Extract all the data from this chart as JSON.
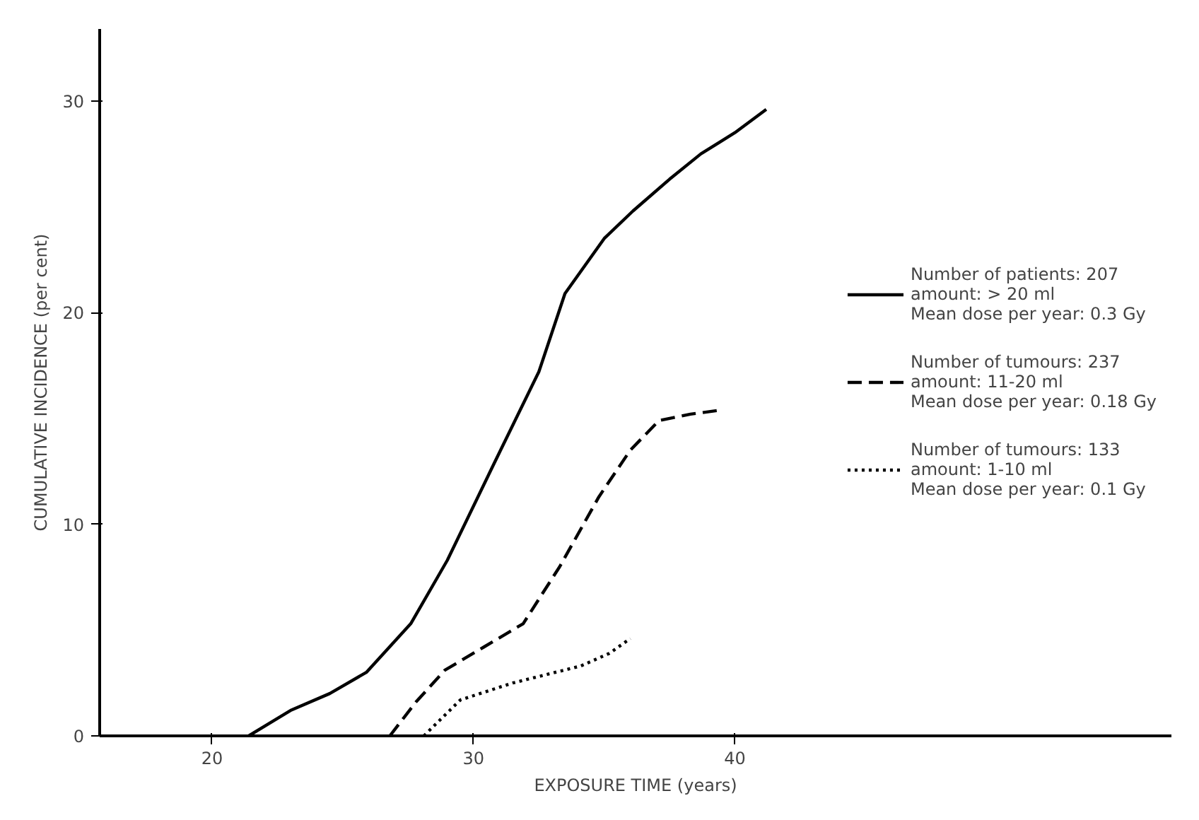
{
  "chart_data": {
    "type": "line",
    "xlabel": "EXPOSURE TIME (years)",
    "ylabel": "CUMULATIVE INCIDENCE (per cent)",
    "xlim": [
      15.7,
      56.7
    ],
    "ylim": [
      0,
      33.4
    ],
    "xticks": [
      20,
      30,
      40
    ],
    "yticks": [
      0,
      10,
      20,
      30
    ],
    "grid": false,
    "legend": "right",
    "marker": "none",
    "series": [
      {
        "name": "Number of patients: 207\namount: > 20 ml\nMean dose per year: 0.3 Gy",
        "color": "#000000",
        "line_style": "solid",
        "x": [
          21.4,
          23,
          24.5,
          25.9,
          27.6,
          29.0,
          30.8,
          32.5,
          33.5,
          35.0,
          36.1,
          37.5,
          38.7,
          40.0,
          41.2
        ],
        "values": [
          0,
          1.2,
          2.0,
          3.0,
          5.3,
          8.3,
          12.9,
          17.2,
          20.9,
          23.5,
          24.8,
          26.3,
          27.5,
          28.5,
          29.6
        ]
      },
      {
        "name": "Number of tumours: 237\namount: 11-20 ml\nMean dose per year: 0.18 Gy",
        "color": "#000000",
        "line_style": "dashed",
        "x": [
          26.8,
          27.8,
          28.9,
          30.4,
          31.9,
          33.3,
          34.8,
          36.0,
          37.1,
          38.3,
          39.5
        ],
        "values": [
          0,
          1.6,
          3.1,
          4.2,
          5.3,
          8.0,
          11.3,
          13.5,
          14.9,
          15.2,
          15.4
        ]
      },
      {
        "name": "Number of tumours: 133\namount: 1-10 ml\nMean dose per year: 0.1 Gy",
        "color": "#000000",
        "line_style": "dotted",
        "x": [
          28.1,
          29.5,
          31.5,
          32.8,
          34.1,
          35.2,
          36.0
        ],
        "values": [
          0,
          1.7,
          2.5,
          2.9,
          3.3,
          3.9,
          4.6
        ]
      }
    ]
  }
}
